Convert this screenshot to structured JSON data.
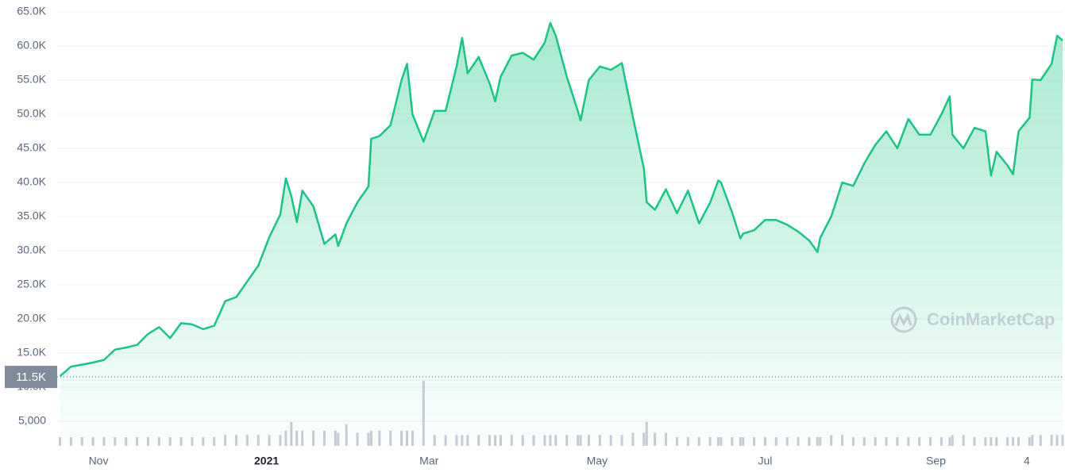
{
  "chart_data": {
    "type": "line",
    "watermark": "CoinMarketCap",
    "annotation": {
      "value": 11500,
      "label": "11.5K"
    },
    "xlim": [
      "2020-10-17",
      "2021-10-17"
    ],
    "xticks": [
      {
        "value": "2020-11-01",
        "label": "Nov"
      },
      {
        "value": "2021-01-01",
        "label": "2021"
      },
      {
        "value": "2021-03-01",
        "label": "Mar"
      },
      {
        "value": "2021-05-01",
        "label": "May"
      },
      {
        "value": "2021-07-01",
        "label": "Jul"
      },
      {
        "value": "2021-09-01",
        "label": "Sep"
      },
      {
        "value": "2021-10-04",
        "label": "4"
      }
    ],
    "ylim": [
      0,
      65000
    ],
    "yticks": [
      {
        "value": 5000,
        "label": "5,000"
      },
      {
        "value": 10000,
        "label": "10.0K"
      },
      {
        "value": 15000,
        "label": "15.0K"
      },
      {
        "value": 20000,
        "label": "20.0K"
      },
      {
        "value": 25000,
        "label": "25.0K"
      },
      {
        "value": 30000,
        "label": "30.0K"
      },
      {
        "value": 35000,
        "label": "35.0K"
      },
      {
        "value": 40000,
        "label": "40.0K"
      },
      {
        "value": 45000,
        "label": "45.0K"
      },
      {
        "value": 50000,
        "label": "50.0K"
      },
      {
        "value": 55000,
        "label": "55.0K"
      },
      {
        "value": 60000,
        "label": "60.0K"
      },
      {
        "value": 65000,
        "label": "65.0K"
      }
    ],
    "y2lim": [
      0,
      100
    ],
    "grid": true,
    "x": [
      "2020-10-18",
      "2020-10-22",
      "2020-10-26",
      "2020-10-30",
      "2020-11-03",
      "2020-11-07",
      "2020-11-11",
      "2020-11-15",
      "2020-11-19",
      "2020-11-23",
      "2020-11-27",
      "2020-12-01",
      "2020-12-05",
      "2020-12-09",
      "2020-12-13",
      "2020-12-17",
      "2020-12-21",
      "2020-12-25",
      "2020-12-29",
      "2021-01-02",
      "2021-01-06",
      "2021-01-08",
      "2021-01-10",
      "2021-01-12",
      "2021-01-14",
      "2021-01-18",
      "2021-01-22",
      "2021-01-26",
      "2021-01-27",
      "2021-01-30",
      "2021-02-03",
      "2021-02-07",
      "2021-02-08",
      "2021-02-11",
      "2021-02-15",
      "2021-02-19",
      "2021-02-21",
      "2021-02-23",
      "2021-02-27",
      "2021-03-03",
      "2021-03-07",
      "2021-03-11",
      "2021-03-13",
      "2021-03-15",
      "2021-03-19",
      "2021-03-23",
      "2021-03-25",
      "2021-03-27",
      "2021-03-31",
      "2021-04-04",
      "2021-04-08",
      "2021-04-12",
      "2021-04-14",
      "2021-04-16",
      "2021-04-20",
      "2021-04-24",
      "2021-04-25",
      "2021-04-28",
      "2021-05-02",
      "2021-05-06",
      "2021-05-10",
      "2021-05-14",
      "2021-05-18",
      "2021-05-19",
      "2021-05-22",
      "2021-05-26",
      "2021-05-30",
      "2021-06-03",
      "2021-06-07",
      "2021-06-11",
      "2021-06-14",
      "2021-06-15",
      "2021-06-19",
      "2021-06-22",
      "2021-06-23",
      "2021-06-27",
      "2021-07-01",
      "2021-07-05",
      "2021-07-09",
      "2021-07-13",
      "2021-07-17",
      "2021-07-20",
      "2021-07-21",
      "2021-07-25",
      "2021-07-29",
      "2021-08-02",
      "2021-08-06",
      "2021-08-10",
      "2021-08-14",
      "2021-08-18",
      "2021-08-22",
      "2021-08-26",
      "2021-08-30",
      "2021-09-03",
      "2021-09-06",
      "2021-09-07",
      "2021-09-11",
      "2021-09-15",
      "2021-09-19",
      "2021-09-21",
      "2021-09-23",
      "2021-09-27",
      "2021-09-29",
      "2021-10-01",
      "2021-10-05",
      "2021-10-06",
      "2021-10-09",
      "2021-10-13",
      "2021-10-15",
      "2021-10-17"
    ],
    "series": [
      {
        "color": "#16c784",
        "values": [
          11600,
          13000,
          13300,
          13600,
          14000,
          15500,
          15800,
          16200,
          17800,
          18800,
          17200,
          19400,
          19200,
          18500,
          19000,
          22600,
          23200,
          25500,
          27800,
          32000,
          35300,
          40600,
          38000,
          34200,
          38800,
          36500,
          31000,
          32400,
          30700,
          34000,
          37100,
          39400,
          46400,
          46800,
          48400,
          55000,
          57400,
          50000,
          46000,
          50500,
          50500,
          57000,
          61200,
          56000,
          58400,
          54500,
          51900,
          55500,
          58600,
          59000,
          58000,
          60500,
          63400,
          61500,
          55500,
          50500,
          49100,
          55000,
          57000,
          56500,
          57500,
          49600,
          42000,
          37100,
          36000,
          39000,
          35500,
          38800,
          34000,
          37000,
          40300,
          40000,
          35600,
          31800,
          32500,
          33000,
          34500,
          34500,
          33800,
          32800,
          31500,
          29800,
          31900,
          35000,
          40000,
          39500,
          42800,
          45500,
          47500,
          45000,
          49300,
          47000,
          47000,
          50000,
          52600,
          47000,
          45000,
          48000,
          47500,
          41000,
          44500,
          42500,
          41200,
          47500,
          49500,
          55100,
          55000,
          57400,
          61500,
          60800
        ]
      },
      {
        "color": "#c5cad3",
        "axis": "y2",
        "values": [
          2,
          2,
          2,
          2,
          2,
          2,
          2,
          2,
          2,
          2,
          2,
          2,
          2,
          2,
          2,
          2.5,
          2.5,
          2.5,
          2.5,
          2.5,
          2.5,
          3.5,
          5.5,
          3.5,
          3.5,
          3.5,
          3.5,
          3.5,
          3,
          5,
          3,
          3,
          3.5,
          3.5,
          3.5,
          3.5,
          3.5,
          3.5,
          15,
          2.5,
          2.5,
          2.5,
          2.5,
          2.5,
          2.5,
          2.5,
          2.5,
          2.5,
          2.5,
          2.5,
          2.5,
          2.5,
          2.5,
          2.5,
          2.5,
          2.5,
          2.5,
          2.5,
          2.5,
          2.5,
          2.5,
          3,
          3,
          5.5,
          3,
          3,
          2,
          2,
          2,
          2,
          2,
          2,
          2,
          2,
          2,
          2,
          2,
          2,
          2,
          2,
          2,
          2,
          2,
          2.5,
          2.5,
          2,
          2,
          2,
          2,
          2,
          2,
          2,
          2,
          2,
          2,
          2.5,
          2.5,
          2,
          2,
          2,
          2,
          2,
          2,
          2,
          2,
          2.5,
          2.5,
          2.5,
          2.5,
          2.5
        ]
      }
    ]
  }
}
